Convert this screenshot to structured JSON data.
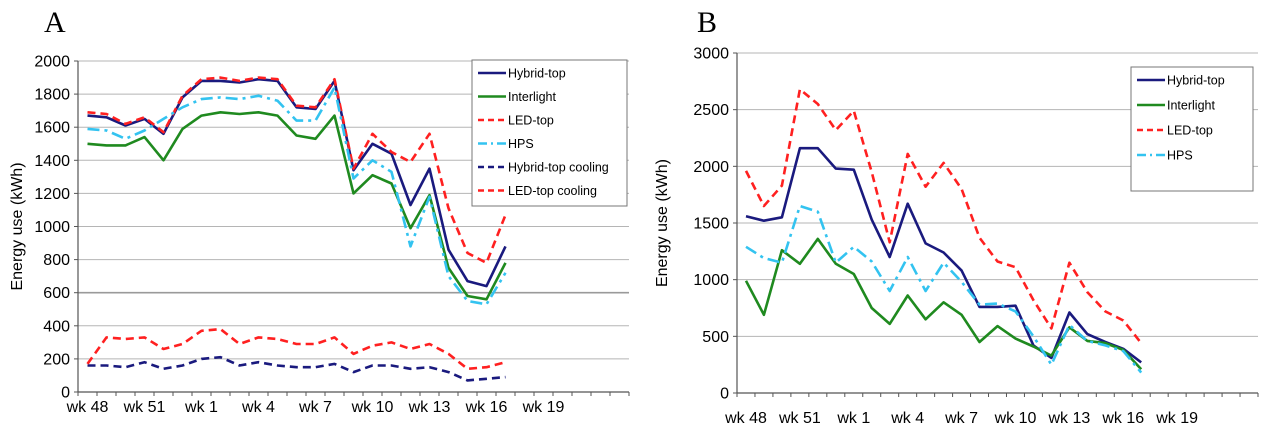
{
  "colors": {
    "navy": "#1a1a7e",
    "green": "#1f8a1f",
    "red": "#ff2020",
    "cyan": "#33c3f0"
  },
  "chart_data": [
    {
      "panel": "A",
      "type": "line",
      "ylabel": "Energy use (kWh)",
      "ylim": [
        0,
        2000
      ],
      "yticks": [
        0,
        200,
        400,
        600,
        800,
        1000,
        1200,
        1400,
        1600,
        1800,
        2000
      ],
      "x_tick_labels": [
        "wk 48",
        "wk 51",
        "wk 1",
        "wk 4",
        "wk 7",
        "wk 10",
        "wk 13",
        "wk 16",
        "wk 19"
      ],
      "grid": true,
      "legend": "top-right",
      "series": [
        {
          "name": "Hybrid-top",
          "color": "navy",
          "dash": "solid",
          "values": [
            1670,
            1660,
            1610,
            1650,
            1560,
            1780,
            1880,
            1880,
            1870,
            1890,
            1880,
            1720,
            1710,
            1880,
            1340,
            1500,
            1440,
            1130,
            1350,
            860,
            670,
            640,
            880
          ]
        },
        {
          "name": "Interlight",
          "color": "green",
          "dash": "solid",
          "values": [
            1500,
            1490,
            1490,
            1540,
            1400,
            1590,
            1670,
            1690,
            1680,
            1690,
            1670,
            1550,
            1530,
            1670,
            1200,
            1310,
            1260,
            990,
            1190,
            750,
            580,
            560,
            780
          ]
        },
        {
          "name": "LED-top",
          "color": "red",
          "dash": "dash",
          "values": [
            1690,
            1680,
            1620,
            1660,
            1570,
            1790,
            1890,
            1900,
            1880,
            1900,
            1890,
            1730,
            1720,
            1890,
            1350,
            1560,
            1450,
            1390,
            1560,
            1110,
            840,
            780,
            1070
          ]
        },
        {
          "name": "HPS",
          "color": "cyan",
          "dash": "dashdot",
          "values": [
            1590,
            1580,
            1530,
            1580,
            1650,
            1720,
            1770,
            1780,
            1770,
            1790,
            1760,
            1640,
            1640,
            1840,
            1290,
            1400,
            1330,
            880,
            1180,
            700,
            550,
            530,
            720
          ]
        },
        {
          "name": "Hybrid-top cooling",
          "color": "navy",
          "dash": "dash",
          "values": [
            160,
            160,
            150,
            180,
            140,
            160,
            200,
            210,
            160,
            180,
            160,
            150,
            150,
            170,
            120,
            160,
            160,
            140,
            150,
            120,
            70,
            80,
            90
          ]
        },
        {
          "name": "LED-top cooling",
          "color": "red",
          "dash": "dash",
          "values": [
            170,
            330,
            320,
            330,
            260,
            290,
            370,
            380,
            290,
            330,
            320,
            290,
            290,
            330,
            230,
            280,
            300,
            260,
            290,
            230,
            140,
            150,
            180
          ]
        }
      ]
    },
    {
      "panel": "B",
      "type": "line",
      "ylabel": "Energy use (kWh)",
      "ylim": [
        0,
        3000
      ],
      "yticks": [
        0,
        500,
        1000,
        1500,
        2000,
        2500,
        3000
      ],
      "x_tick_labels": [
        "wk 48",
        "wk 51",
        "wk 1",
        "wk 4",
        "wk 7",
        "wk 10",
        "wk 13",
        "wk 16",
        "wk 19"
      ],
      "grid": true,
      "legend": "top-right",
      "series": [
        {
          "name": "Hybrid-top",
          "color": "navy",
          "dash": "solid",
          "values": [
            1560,
            1520,
            1550,
            2160,
            2160,
            1980,
            1970,
            1530,
            1200,
            1670,
            1320,
            1240,
            1080,
            760,
            760,
            770,
            420,
            310,
            710,
            520,
            450,
            390,
            270
          ]
        },
        {
          "name": "Interlight",
          "color": "green",
          "dash": "solid",
          "values": [
            990,
            690,
            1260,
            1140,
            1360,
            1140,
            1050,
            750,
            610,
            860,
            650,
            800,
            690,
            450,
            590,
            480,
            410,
            330,
            580,
            460,
            440,
            380,
            210
          ]
        },
        {
          "name": "LED-top",
          "color": "red",
          "dash": "dash",
          "values": [
            1960,
            1650,
            1830,
            2680,
            2550,
            2320,
            2490,
            1950,
            1330,
            2110,
            1820,
            2030,
            1800,
            1370,
            1160,
            1110,
            820,
            570,
            1150,
            890,
            720,
            640,
            440
          ]
        },
        {
          "name": "HPS",
          "color": "cyan",
          "dash": "dashdot",
          "values": [
            1290,
            1190,
            1150,
            1650,
            1600,
            1150,
            1290,
            1160,
            900,
            1200,
            900,
            1150,
            980,
            780,
            790,
            720,
            500,
            250,
            600,
            460,
            420,
            370,
            180
          ]
        }
      ]
    }
  ],
  "panels": {
    "a_label": "A",
    "b_label": "B"
  }
}
